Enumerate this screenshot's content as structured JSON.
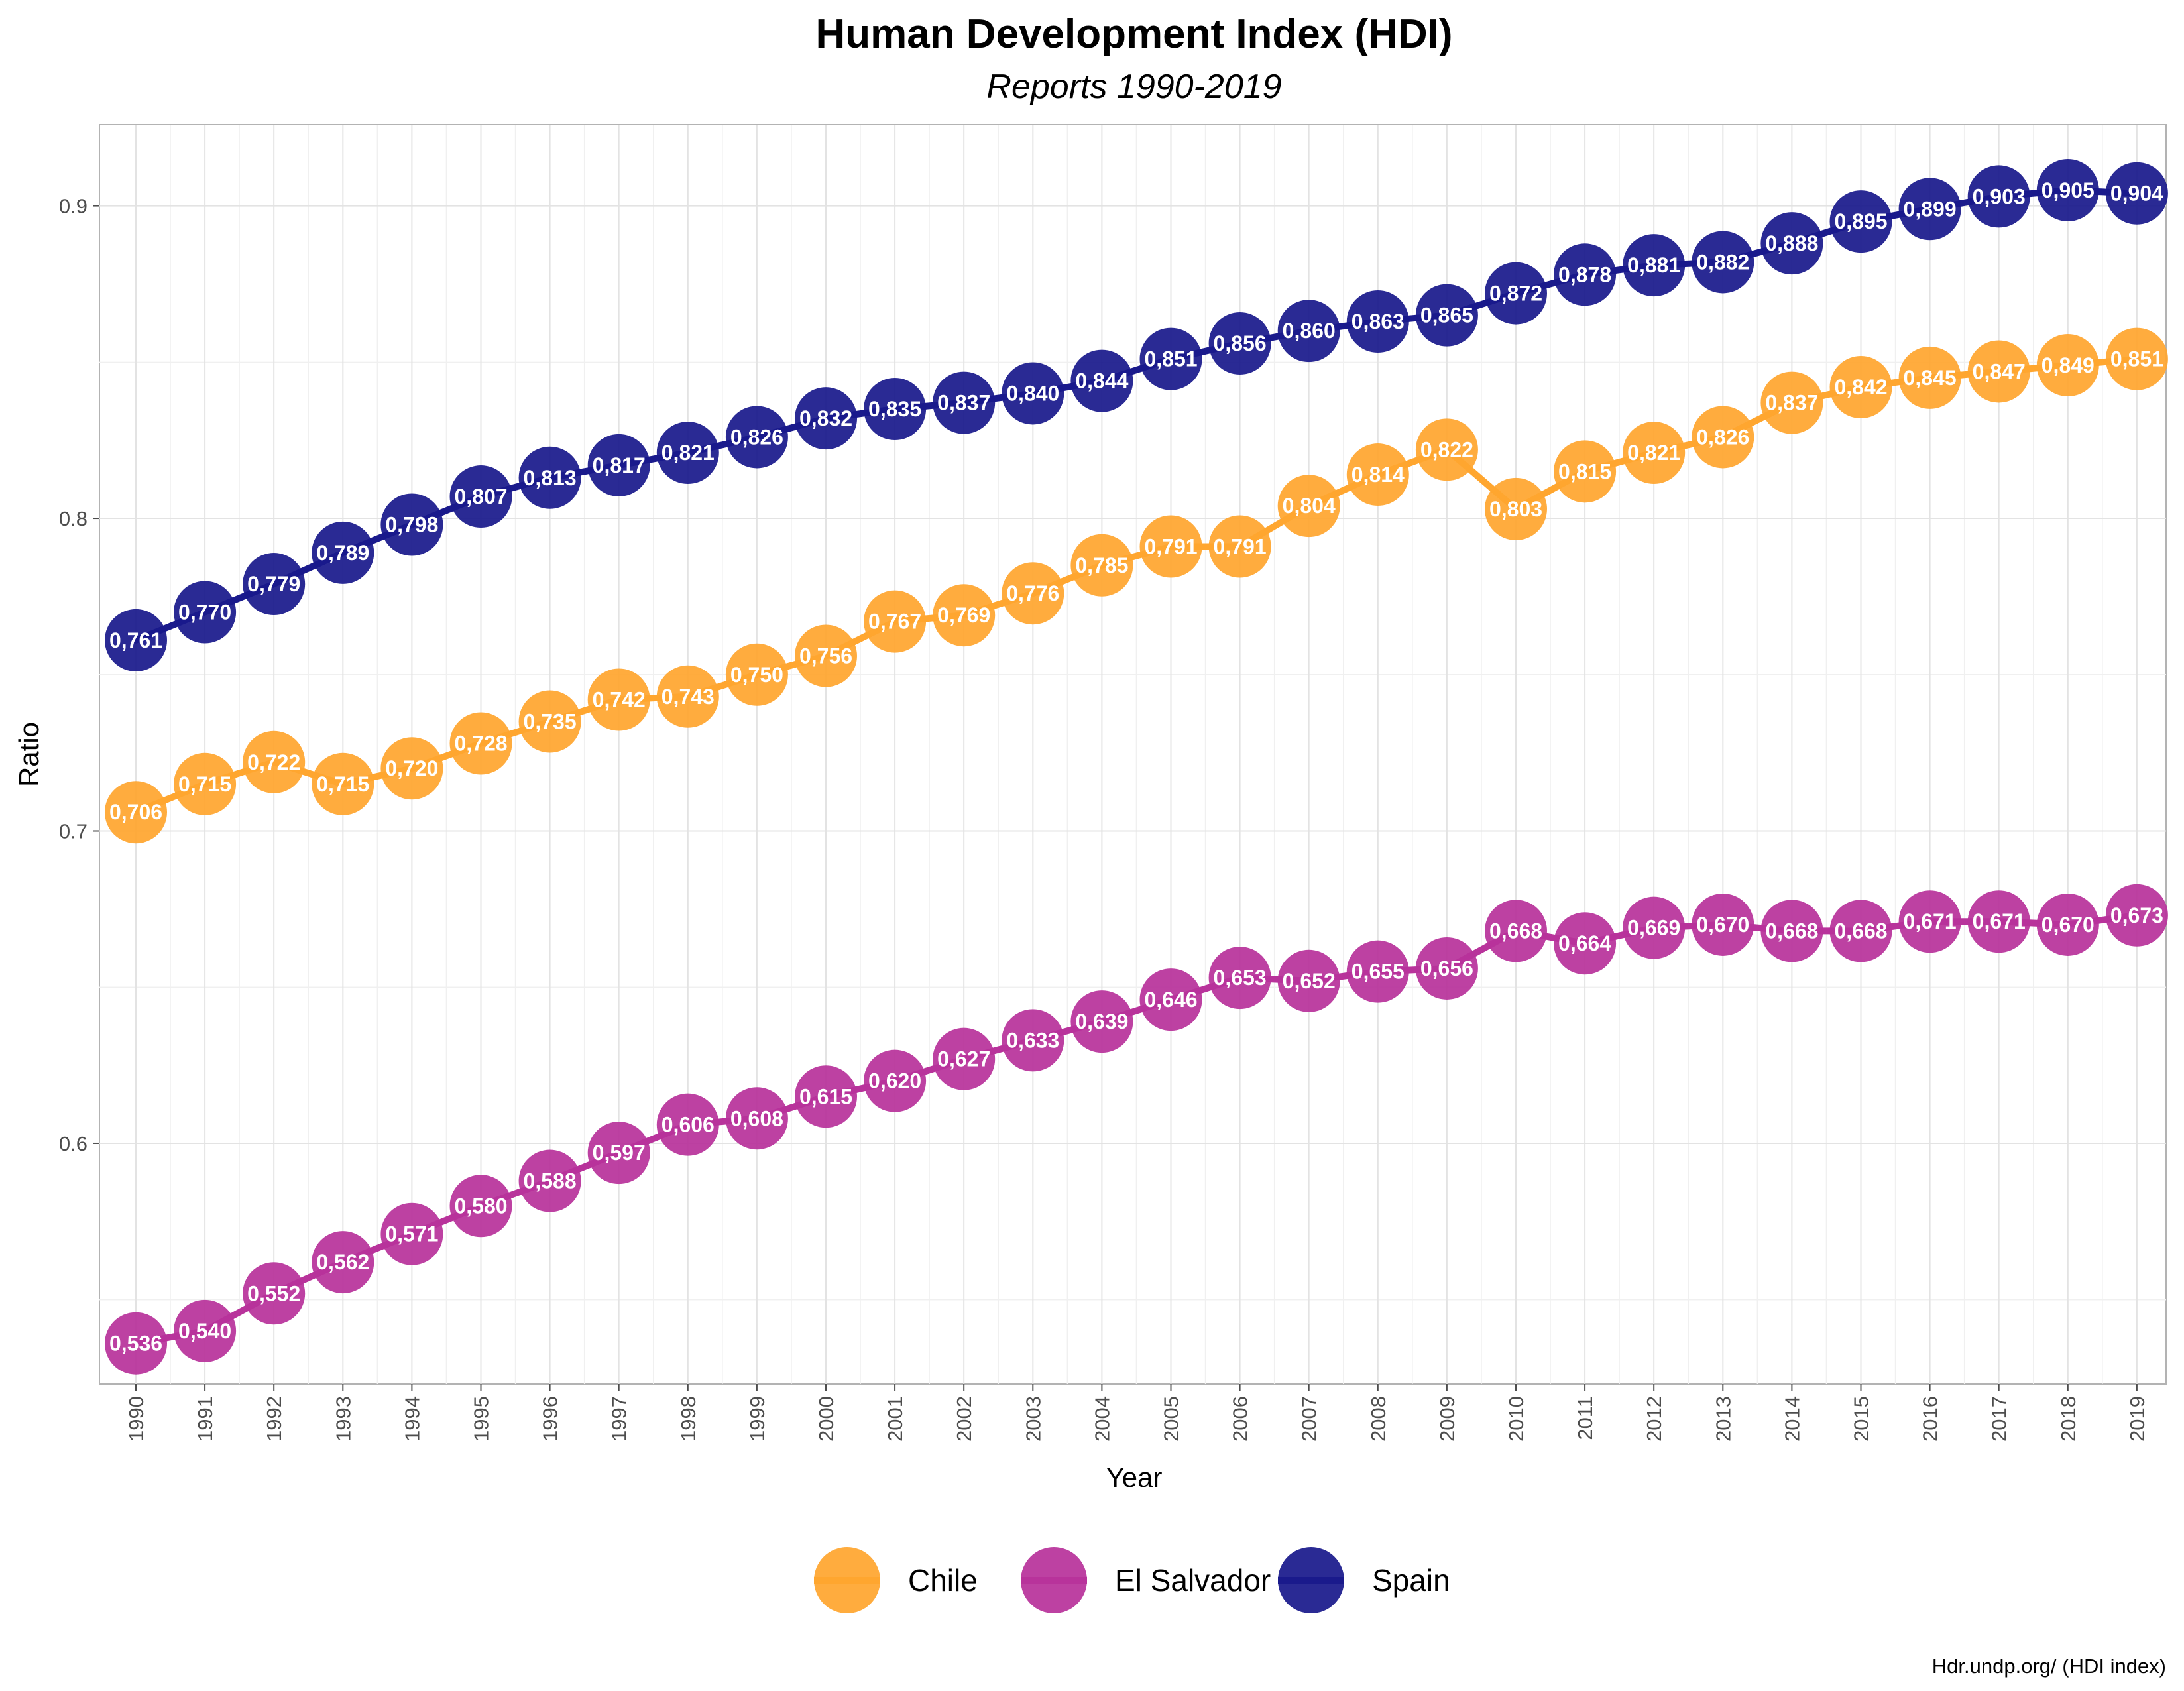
{
  "chart_data": {
    "type": "line",
    "title": "Human Development Index (HDI)",
    "subtitle": "Reports 1990-2019",
    "xlabel": "Year",
    "ylabel": "Ratio",
    "caption": "Hdr.undp.org/ (HDI index)",
    "ylim": [
      0.523,
      0.926
    ],
    "yticks": [
      "0.6",
      "0.7",
      "0.8",
      "0.9"
    ],
    "y_tick_values": [
      0.6,
      0.7,
      0.8,
      0.9
    ],
    "grid": true,
    "legend_position": "bottom",
    "categories": [
      "1990",
      "1991",
      "1992",
      "1993",
      "1994",
      "1995",
      "1996",
      "1997",
      "1998",
      "1999",
      "2000",
      "2001",
      "2002",
      "2003",
      "2004",
      "2005",
      "2006",
      "2007",
      "2008",
      "2009",
      "2010",
      "2011",
      "2012",
      "2013",
      "2014",
      "2015",
      "2016",
      "2017",
      "2018",
      "2019"
    ],
    "series": [
      {
        "name": "Chile",
        "color": "#FFA62F",
        "values": [
          0.706,
          0.715,
          0.722,
          0.715,
          0.72,
          0.728,
          0.735,
          0.742,
          0.743,
          0.75,
          0.756,
          0.767,
          0.769,
          0.776,
          0.785,
          0.791,
          0.791,
          0.804,
          0.814,
          0.822,
          0.803,
          0.815,
          0.821,
          0.826,
          0.837,
          0.842,
          0.845,
          0.847,
          0.849,
          0.851
        ],
        "labels": [
          "0,706",
          "0,715",
          "0,722",
          "0,715",
          "0,720",
          "0,728",
          "0,735",
          "0,742",
          "0,743",
          "0,750",
          "0,756",
          "0,767",
          "0,769",
          "0,776",
          "0,785",
          "0,791",
          "0,791",
          "0,804",
          "0,814",
          "0,822",
          "0,803",
          "0,815",
          "0,821",
          "0,826",
          "0,837",
          "0,842",
          "0,845",
          "0,847",
          "0,849",
          "0,851"
        ]
      },
      {
        "name": "El Salvador",
        "color": "#B8339B",
        "values": [
          0.536,
          0.54,
          0.552,
          0.562,
          0.571,
          0.58,
          0.588,
          0.597,
          0.606,
          0.608,
          0.615,
          0.62,
          0.627,
          0.633,
          0.639,
          0.646,
          0.653,
          0.652,
          0.655,
          0.656,
          0.668,
          0.664,
          0.669,
          0.67,
          0.668,
          0.668,
          0.671,
          0.671,
          0.67,
          0.673
        ],
        "labels": [
          "0,536",
          "0,540",
          "0,552",
          "0,562",
          "0,571",
          "0,580",
          "0,588",
          "0,597",
          "0,606",
          "0,608",
          "0,615",
          "0,620",
          "0,627",
          "0,633",
          "0,639",
          "0,646",
          "0,653",
          "0,652",
          "0,655",
          "0,656",
          "0,668",
          "0,664",
          "0,669",
          "0,670",
          "0,668",
          "0,668",
          "0,671",
          "0,671",
          "0,670",
          "0,673"
        ]
      },
      {
        "name": "Spain",
        "color": "#1A1A8C",
        "values": [
          0.761,
          0.77,
          0.779,
          0.789,
          0.798,
          0.807,
          0.813,
          0.817,
          0.821,
          0.826,
          0.832,
          0.835,
          0.837,
          0.84,
          0.844,
          0.851,
          0.856,
          0.86,
          0.863,
          0.865,
          0.872,
          0.878,
          0.881,
          0.882,
          0.888,
          0.895,
          0.899,
          0.903,
          0.905,
          0.904
        ],
        "labels": [
          "0,761",
          "0,770",
          "0,779",
          "0,789",
          "0,798",
          "0,807",
          "0,813",
          "0,817",
          "0,821",
          "0,826",
          "0,832",
          "0,835",
          "0,837",
          "0,840",
          "0,844",
          "0,851",
          "0,856",
          "0,860",
          "0,863",
          "0,865",
          "0,872",
          "0,878",
          "0,881",
          "0,882",
          "0,888",
          "0,895",
          "0,899",
          "0,903",
          "0,905",
          "0,904"
        ]
      }
    ]
  }
}
